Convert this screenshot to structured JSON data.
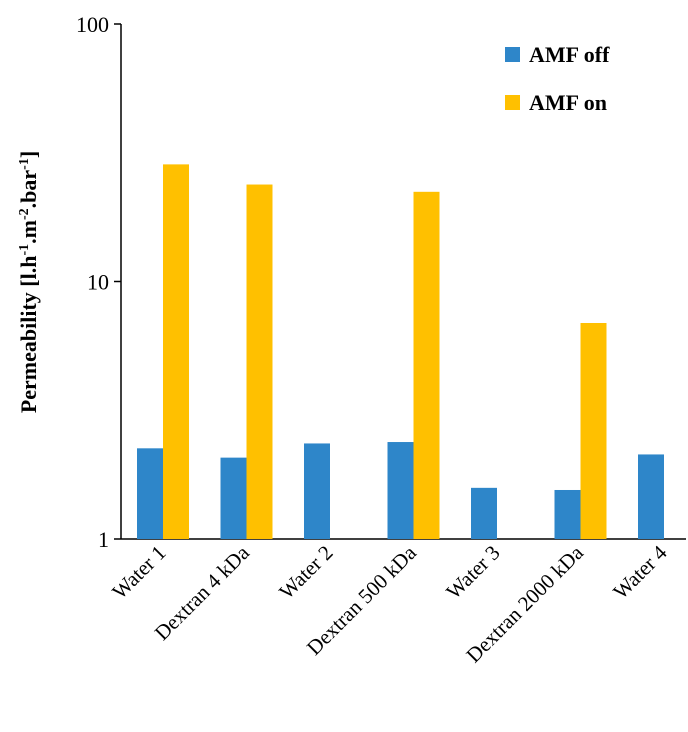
{
  "chart_data": {
    "type": "bar",
    "y_scale": "log",
    "ylim": [
      1,
      100
    ],
    "yticks": [
      "1",
      "10",
      "100"
    ],
    "ylabel": "Permeability  [l.h-1.m-2.bar-1]",
    "ylabel_parts": {
      "prefix": "Permeability  [l.h",
      "sup1": "-1",
      "mid1": ".m",
      "sup2": "-2",
      "mid2": ".bar",
      "sup3": "-1",
      "suffix": "]"
    },
    "xlabel": "",
    "grid": false,
    "legend_position": "top-right",
    "categories": [
      "Water 1",
      "Dextran 4 kDa",
      "Water 2",
      "Dextran 500 kDa",
      "Water 3",
      "Dextran 2000 kDa",
      "Water 4"
    ],
    "series": [
      {
        "name": "AMF off",
        "color": "#2E86C9",
        "values": [
          2.25,
          2.07,
          2.35,
          2.38,
          1.58,
          1.55,
          2.13
        ]
      },
      {
        "name": "AMF on",
        "color": "#FFC000",
        "values": [
          28.5,
          23.8,
          null,
          22.3,
          null,
          6.9,
          null
        ]
      }
    ]
  }
}
